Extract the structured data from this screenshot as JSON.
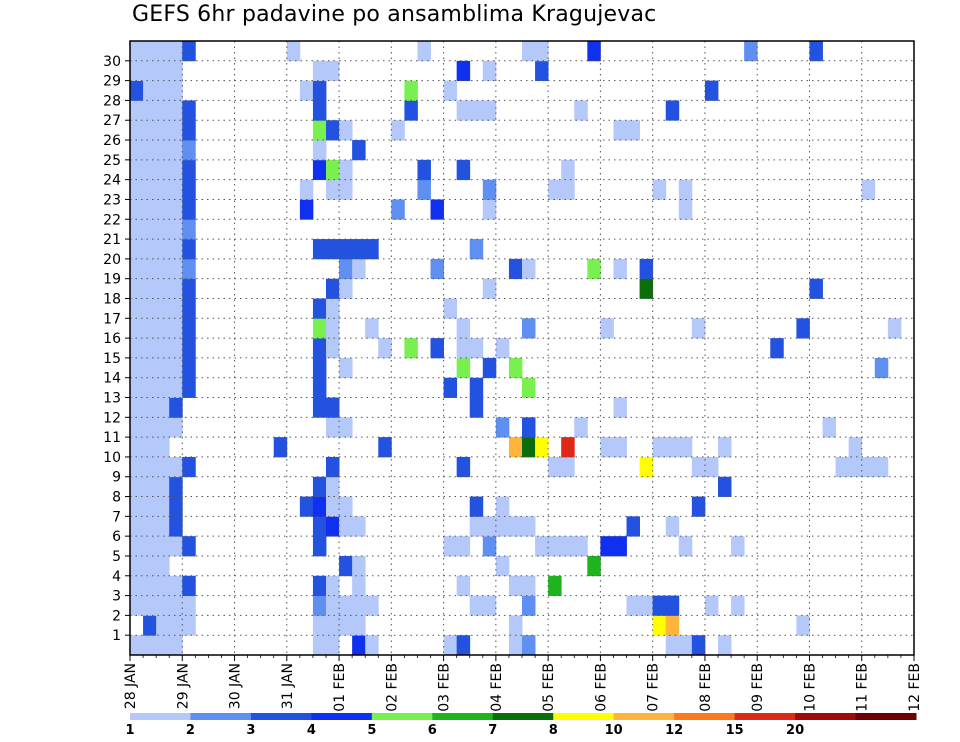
{
  "chart_data": {
    "type": "heatmap",
    "title": "GEFS 6hr padavine po ansamblima Kragujevac",
    "xlabel": "",
    "ylabel": "",
    "x_tick_labels": [
      "28 JAN",
      "29 JAN",
      "30 JAN",
      "31 JAN",
      "01 FEB",
      "02 FEB",
      "03 FEB",
      "04 FEB",
      "05 FEB",
      "06 FEB",
      "07 FEB",
      "08 FEB",
      "09 FEB",
      "10 FEB",
      "11 FEB",
      "12 FEB"
    ],
    "y_tick_labels": [
      "1",
      "2",
      "3",
      "4",
      "5",
      "6",
      "7",
      "8",
      "9",
      "10",
      "11",
      "12",
      "13",
      "14",
      "15",
      "16",
      "17",
      "18",
      "19",
      "20",
      "21",
      "22",
      "23",
      "24",
      "25",
      "26",
      "27",
      "28",
      "29",
      "30"
    ],
    "ylim": [
      0,
      30
    ],
    "x_steps": 60,
    "steps_per_day": 4,
    "grid": true,
    "colorbar": {
      "position": "bottom",
      "tick_labels": [
        "1",
        "2",
        "3",
        "4",
        "5",
        "6",
        "7",
        "8",
        "10",
        "12",
        "15",
        "20"
      ],
      "colors": [
        "#b4c8fa",
        "#5f8ff0",
        "#2352e0",
        "#1030f0",
        "#78f050",
        "#1eb41e",
        "#0a6e0a",
        "#ffff00",
        "#ffb43c",
        "#ff781e",
        "#e02818",
        "#a00a0a",
        "#6e0000"
      ]
    },
    "member_rows": [
      "1111..........11.41.....13...12..........113.1...........",
      ".3111.........1111...........1..........9H.........1......",
      "11111.........21111.......11..2.......1133..1.1............",
      "11113.........31.1.......1...11.6...........................",
      "111.............31..........1......6..............................",
      "11113.........3.........11.2...1111.44....1...1................",
      "1113..........3411........11111.......3..1.......................",
      "1113.........3411.........3.1..............3.......................",
      "1113..........31.............................3...............31.....",
      "11113..........3.........3......11.....9...11.........1111.......1",
      "111........3.......3.........8G9.C..11..111..1.........1..........",
      "1111...........11...........2.3...1..................1.........1",
      "1113..........33..........3..........1...........................",
      "11113.........3.........3.3...5..................................",
      "11113.........3.1........5.3.5...........................2........",
      "11113.........31...1.5.3.11.1....................3..............1",
      "11113.........51..1......1....2.....1......1.......3......1.3.......",
      "11113.........31........1.............................................",
      "11113..........31..........1...........G............3...........11",
      "11112...........21.....2.....31....5.1.3....................1.1.1",
      "11113.........33333.......2.......................................",
      "11112...........................................................3.1",
      "11113........4......2..4...1..............1.......................",
      "11113........1.11.....2....2....11......1.1.............1.........",
      "11113.........451.....3..3.......1............................1....",
      "11112.........1..3..........................................1......",
      "11113.........531...1................11........................1...",
      "11113.........3......3...111......1......3...........................",
      "3111.........13......5..1...................3...........................",
      "1111..........11.........4.1...3..................................................",
      "11113.......1.........1.......11...4...........2....3...........1...."
    ]
  }
}
